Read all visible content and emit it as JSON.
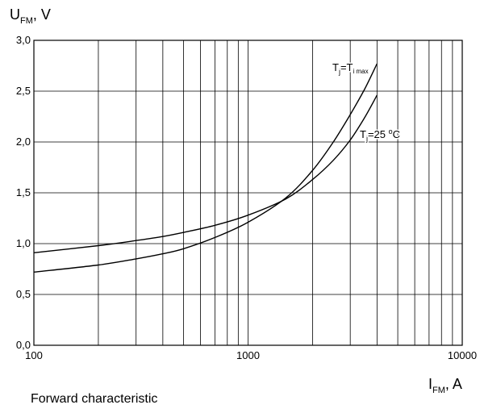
{
  "chart_data": {
    "type": "line",
    "y_axis": {
      "symbol": "U",
      "subscript": "FM",
      "unit_suffix": ", V"
    },
    "x_axis": {
      "symbol": "I",
      "subscript": "FM",
      "unit_suffix": ", A"
    },
    "caption": "Forward characteristic",
    "x_scale": "log",
    "xlim": [
      100,
      10000
    ],
    "ylim": [
      0,
      3.0
    ],
    "x_ticks": [
      {
        "value": 100,
        "label": "100"
      },
      {
        "value": 1000,
        "label": "1000"
      },
      {
        "value": 10000,
        "label": "10000"
      }
    ],
    "y_ticks": [
      {
        "value": 0.0,
        "label": "0,0"
      },
      {
        "value": 0.5,
        "label": "0,5"
      },
      {
        "value": 1.0,
        "label": "1,0"
      },
      {
        "value": 1.5,
        "label": "1,5"
      },
      {
        "value": 2.0,
        "label": "2,0"
      },
      {
        "value": 2.5,
        "label": "2,5"
      },
      {
        "value": 3.0,
        "label": "3,0"
      }
    ],
    "grid": true,
    "series": [
      {
        "label_parts": [
          "T",
          "j",
          "=T",
          "i max",
          ""
        ],
        "color": "#000000",
        "points": [
          [
            100,
            0.72
          ],
          [
            200,
            0.79
          ],
          [
            300,
            0.85
          ],
          [
            400,
            0.9
          ],
          [
            500,
            0.95
          ],
          [
            700,
            1.06
          ],
          [
            1000,
            1.21
          ],
          [
            1500,
            1.45
          ],
          [
            2000,
            1.72
          ],
          [
            2500,
            2.0
          ],
          [
            3000,
            2.27
          ],
          [
            3500,
            2.52
          ],
          [
            4000,
            2.77
          ]
        ]
      },
      {
        "label_parts": [
          "T",
          "j",
          "=25 ",
          "o",
          "C"
        ],
        "color": "#000000",
        "points": [
          [
            100,
            0.91
          ],
          [
            200,
            0.98
          ],
          [
            300,
            1.03
          ],
          [
            400,
            1.07
          ],
          [
            500,
            1.11
          ],
          [
            700,
            1.18
          ],
          [
            1000,
            1.28
          ],
          [
            1500,
            1.44
          ],
          [
            2000,
            1.63
          ],
          [
            2500,
            1.82
          ],
          [
            3000,
            2.02
          ],
          [
            3500,
            2.24
          ],
          [
            4000,
            2.46
          ]
        ]
      }
    ]
  }
}
